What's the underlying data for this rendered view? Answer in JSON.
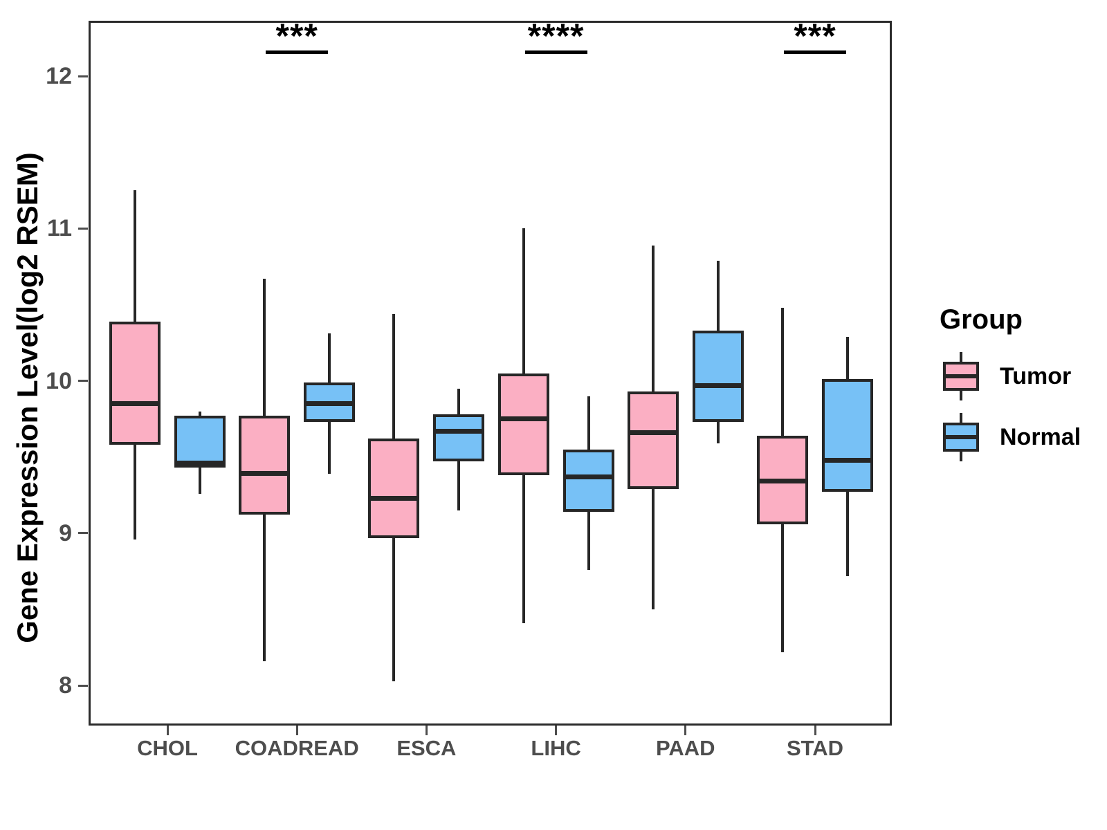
{
  "figure_title": "",
  "y_axis": {
    "title": "Gene Expression Level(log2 RSEM)",
    "tick_values": [
      8,
      9,
      10,
      11,
      12
    ]
  },
  "x_axis": {
    "title": "",
    "categories": [
      "CHOL",
      "COADREAD",
      "ESCA",
      "LIHC",
      "PAAD",
      "STAD"
    ]
  },
  "legend": {
    "title": "Group",
    "items": [
      {
        "label": "Tumor",
        "color": "#FBAFC3"
      },
      {
        "label": "Normal",
        "color": "#77C1F6"
      }
    ]
  },
  "colors": {
    "tumor_fill": "#FBAFC3",
    "normal_fill": "#77C1F6",
    "box_stroke": "#262626",
    "axis_text": "#4d4d4d",
    "annotation": "#000000"
  },
  "chart_data": {
    "type": "boxplot",
    "title": "",
    "xlabel": "",
    "ylabel": "Gene Expression Level(log2 RSEM)",
    "ylim": [
      7.74,
      12.36
    ],
    "yticks": [
      8,
      9,
      10,
      11,
      12
    ],
    "grid": false,
    "legend_position": "right",
    "categories": [
      "CHOL",
      "COADREAD",
      "ESCA",
      "LIHC",
      "PAAD",
      "STAD"
    ],
    "series": [
      {
        "name": "Tumor",
        "color": "#FBAFC3",
        "boxes": [
          {
            "category": "CHOL",
            "min": 8.96,
            "q1": 9.58,
            "median": 9.85,
            "q3": 10.39,
            "max": 11.25
          },
          {
            "category": "COADREAD",
            "min": 8.16,
            "q1": 9.12,
            "median": 9.39,
            "q3": 9.77,
            "max": 10.67
          },
          {
            "category": "ESCA",
            "min": 8.03,
            "q1": 8.97,
            "median": 9.23,
            "q3": 9.62,
            "max": 10.44
          },
          {
            "category": "LIHC",
            "min": 8.41,
            "q1": 9.38,
            "median": 9.75,
            "q3": 10.05,
            "max": 11.0
          },
          {
            "category": "PAAD",
            "min": 8.5,
            "q1": 9.29,
            "median": 9.66,
            "q3": 9.93,
            "max": 10.89
          },
          {
            "category": "STAD",
            "min": 8.22,
            "q1": 9.06,
            "median": 9.34,
            "q3": 9.64,
            "max": 10.48
          }
        ]
      },
      {
        "name": "Normal",
        "color": "#77C1F6",
        "boxes": [
          {
            "category": "CHOL",
            "min": 9.26,
            "q1": 9.43,
            "median": 9.46,
            "q3": 9.77,
            "max": 9.8
          },
          {
            "category": "COADREAD",
            "min": 9.39,
            "q1": 9.73,
            "median": 9.85,
            "q3": 9.99,
            "max": 10.31
          },
          {
            "category": "ESCA",
            "min": 9.15,
            "q1": 9.47,
            "median": 9.67,
            "q3": 9.78,
            "max": 9.95
          },
          {
            "category": "LIHC",
            "min": 8.76,
            "q1": 9.14,
            "median": 9.37,
            "q3": 9.55,
            "max": 9.9
          },
          {
            "category": "PAAD",
            "min": 9.59,
            "q1": 9.73,
            "median": 9.97,
            "q3": 10.33,
            "max": 10.79
          },
          {
            "category": "STAD",
            "min": 8.72,
            "q1": 9.27,
            "median": 9.48,
            "q3": 10.01,
            "max": 10.29
          }
        ]
      }
    ],
    "significance": [
      {
        "category": "COADREAD",
        "label": "***"
      },
      {
        "category": "LIHC",
        "label": "****"
      },
      {
        "category": "STAD",
        "label": "***"
      }
    ]
  }
}
